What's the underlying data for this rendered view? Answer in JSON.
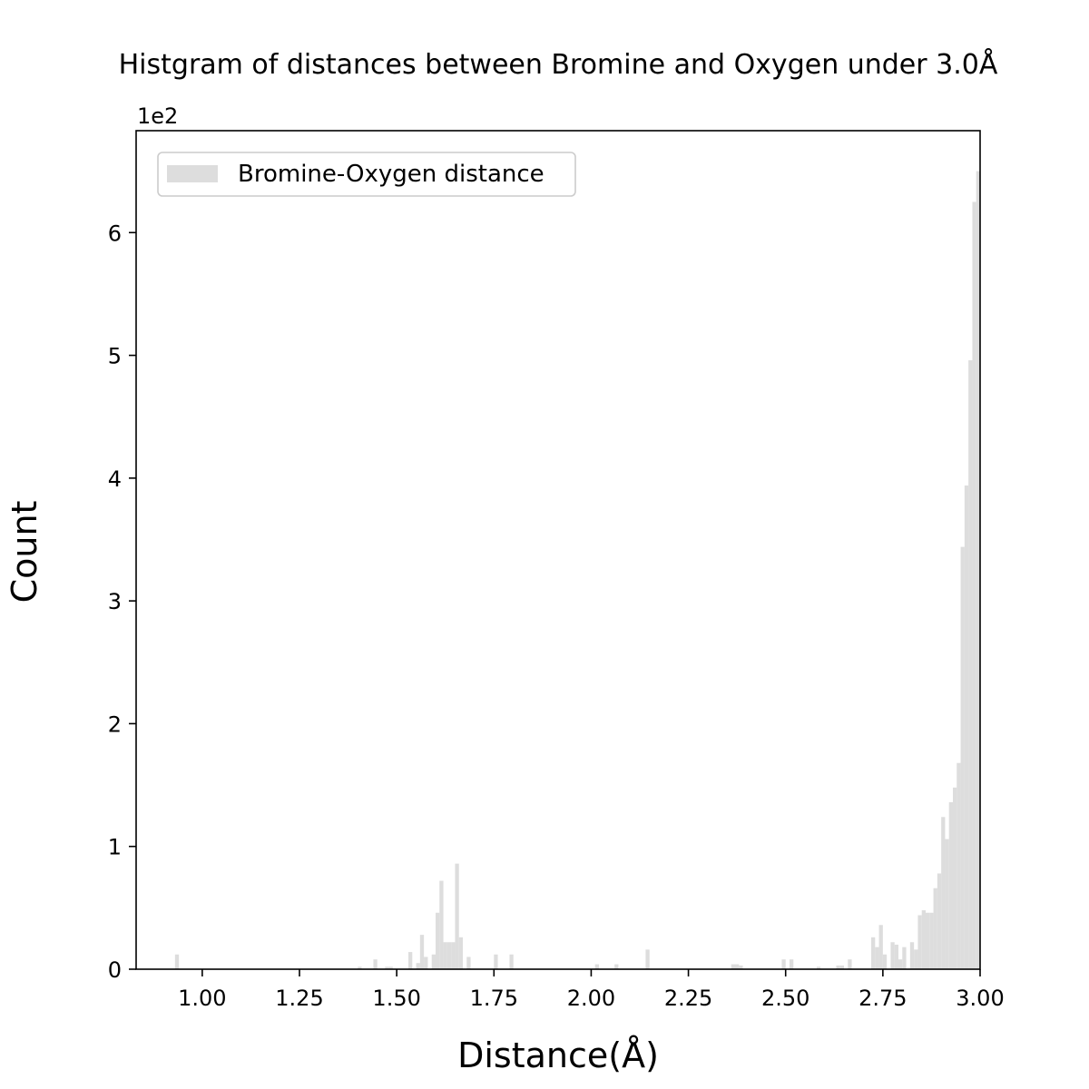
{
  "chart_data": {
    "type": "bar",
    "title": "Histgram of distances between Bromine and Oxygen under 3.0Å",
    "xlabel": "Distance(Å)",
    "ylabel": "Count",
    "y_offset_text": "1e2",
    "xlim": [
      0.83,
      3.0
    ],
    "ylim": [
      0,
      6.83
    ],
    "x_ticks": [
      1.0,
      1.25,
      1.5,
      1.75,
      2.0,
      2.25,
      2.5,
      2.75,
      3.0
    ],
    "x_tick_labels": [
      "1.00",
      "1.25",
      "1.50",
      "1.75",
      "2.00",
      "2.25",
      "2.50",
      "2.75",
      "3.00"
    ],
    "y_ticks": [
      0,
      1,
      2,
      3,
      4,
      5,
      6
    ],
    "y_tick_labels": [
      "0",
      "1",
      "2",
      "3",
      "4",
      "5",
      "6"
    ],
    "grid": false,
    "legend_position": "top-left",
    "color": "#dddddd",
    "bin_width": 0.01,
    "series": [
      {
        "name": "Bromine-Oxygen distance",
        "x": [
          0.935,
          1.405,
          1.445,
          1.475,
          1.485,
          1.535,
          1.555,
          1.565,
          1.575,
          1.595,
          1.605,
          1.615,
          1.625,
          1.635,
          1.645,
          1.655,
          1.665,
          1.685,
          1.755,
          1.795,
          2.015,
          2.065,
          2.145,
          2.365,
          2.375,
          2.385,
          2.495,
          2.515,
          2.585,
          2.635,
          2.645,
          2.665,
          2.725,
          2.735,
          2.745,
          2.755,
          2.775,
          2.785,
          2.795,
          2.805,
          2.825,
          2.835,
          2.845,
          2.855,
          2.865,
          2.875,
          2.885,
          2.895,
          2.905,
          2.915,
          2.925,
          2.935,
          2.945,
          2.955,
          2.965,
          2.975,
          2.985,
          2.995
        ],
        "values": [
          0.12,
          0.02,
          0.08,
          0.02,
          0.02,
          0.14,
          0.05,
          0.28,
          0.1,
          0.12,
          0.46,
          0.72,
          0.22,
          0.22,
          0.22,
          0.86,
          0.26,
          0.1,
          0.12,
          0.12,
          0.04,
          0.04,
          0.16,
          0.04,
          0.04,
          0.03,
          0.08,
          0.08,
          0.02,
          0.03,
          0.03,
          0.08,
          0.26,
          0.18,
          0.36,
          0.12,
          0.22,
          0.2,
          0.08,
          0.18,
          0.22,
          0.16,
          0.44,
          0.48,
          0.46,
          0.46,
          0.66,
          0.78,
          1.24,
          1.06,
          1.36,
          1.48,
          1.68,
          3.44,
          3.94,
          4.96,
          6.25,
          6.5
        ]
      }
    ]
  }
}
